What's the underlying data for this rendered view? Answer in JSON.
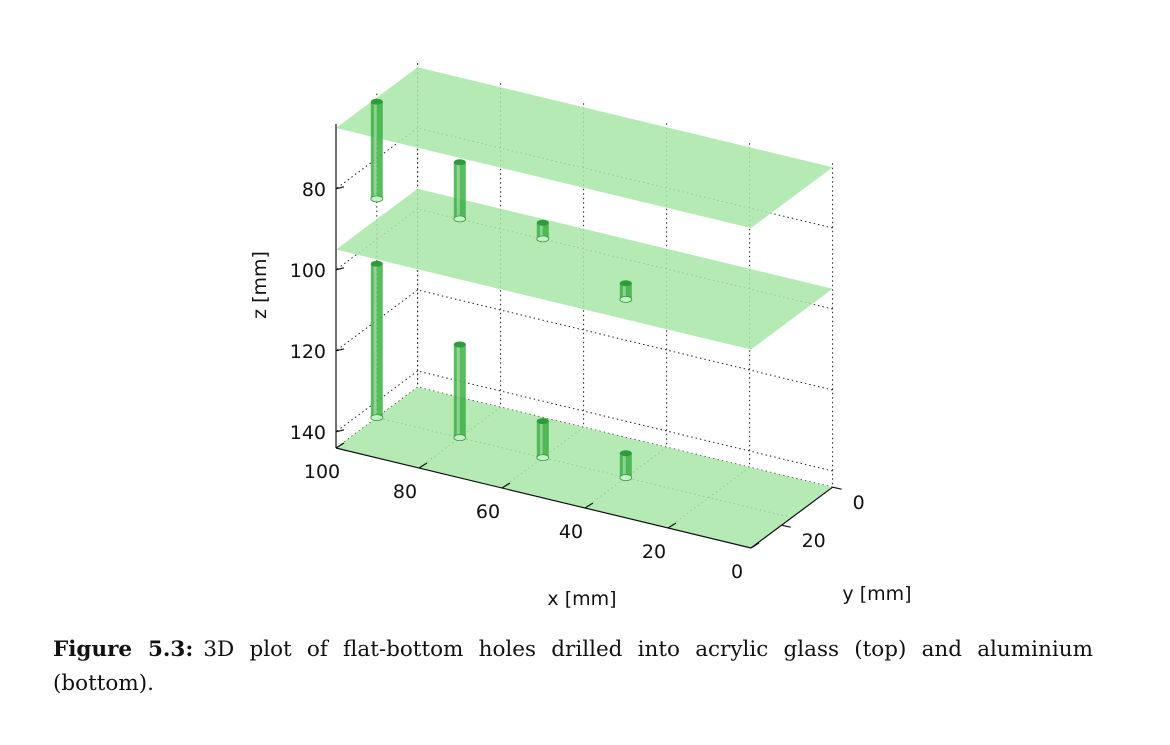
{
  "figure": {
    "caption_label": "Figure 5.3:",
    "caption_text": "3D plot of flat-bottom holes drilled into acrylic glass (top) and aluminium (bottom)."
  },
  "chart_data": {
    "type": "3d-surface",
    "xlabel": "x [mm]",
    "ylabel": "y [mm]",
    "zlabel": "z [mm]",
    "xticks": [
      100,
      80,
      60,
      40,
      20,
      0
    ],
    "yticks": [
      0,
      20
    ],
    "zticks": [
      80,
      100,
      120,
      140
    ],
    "zlim": [
      64,
      144
    ],
    "z_direction": "reversed",
    "grid": true,
    "surface_color": "#a8e6a8",
    "hole_color": "#3cb043",
    "plates": [
      {
        "name": "top",
        "z_planes": [
          65,
          95
        ]
      },
      {
        "name": "bottom",
        "z_planes": [
          144
        ]
      }
    ],
    "holes": [
      {
        "plate": "top",
        "x": 100,
        "z_top": 66,
        "z_bottom": 90
      },
      {
        "plate": "top",
        "x": 80,
        "z_top": 76,
        "z_bottom": 90
      },
      {
        "plate": "top",
        "x": 60,
        "z_top": 86,
        "z_bottom": 90
      },
      {
        "plate": "top",
        "x": 40,
        "z_top": 96,
        "z_bottom": 100
      },
      {
        "plate": "bottom",
        "x": 100,
        "z_top": 106,
        "z_bottom": 144
      },
      {
        "plate": "bottom",
        "x": 80,
        "z_top": 121,
        "z_bottom": 144
      },
      {
        "plate": "bottom",
        "x": 60,
        "z_top": 135,
        "z_bottom": 144
      },
      {
        "plate": "bottom",
        "x": 40,
        "z_top": 138,
        "z_bottom": 144
      }
    ]
  }
}
